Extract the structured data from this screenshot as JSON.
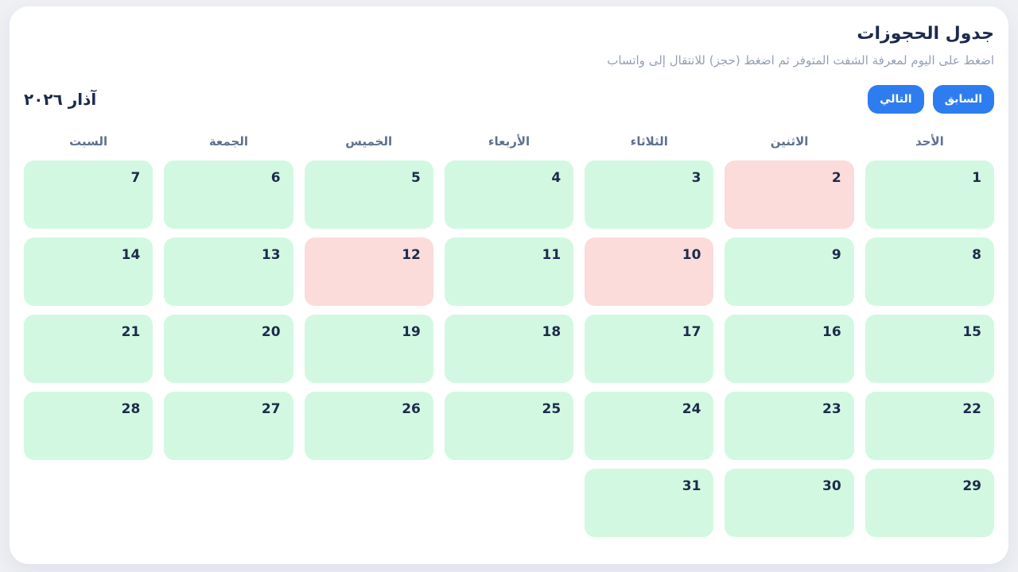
{
  "page": {
    "title": "جدول الحجوزات",
    "subtitle": "اضغط على اليوم لمعرفة الشفت المتوفر ثم اضغط (حجز) للانتقال إلى واتساب"
  },
  "toolbar": {
    "month_label": "آذار ٢٠٢٦",
    "prev_label": "السابق",
    "next_label": "التالي",
    "button_color": "#2e7df0"
  },
  "calendar": {
    "weekdays": [
      "الأحد",
      "الاثنين",
      "الثلاثاء",
      "الأربعاء",
      "الخميس",
      "الجمعة",
      "السبت"
    ],
    "start_weekday_index": 0,
    "colors": {
      "available": "#d2f8e2",
      "unavailable": "#fcdbdb"
    },
    "days": [
      {
        "day": "1",
        "status": "available"
      },
      {
        "day": "2",
        "status": "unavailable"
      },
      {
        "day": "3",
        "status": "available"
      },
      {
        "day": "4",
        "status": "available"
      },
      {
        "day": "5",
        "status": "available"
      },
      {
        "day": "6",
        "status": "available"
      },
      {
        "day": "7",
        "status": "available"
      },
      {
        "day": "8",
        "status": "available"
      },
      {
        "day": "9",
        "status": "available"
      },
      {
        "day": "10",
        "status": "unavailable"
      },
      {
        "day": "11",
        "status": "available"
      },
      {
        "day": "12",
        "status": "unavailable"
      },
      {
        "day": "13",
        "status": "available"
      },
      {
        "day": "14",
        "status": "available"
      },
      {
        "day": "15",
        "status": "available"
      },
      {
        "day": "16",
        "status": "available"
      },
      {
        "day": "17",
        "status": "available"
      },
      {
        "day": "18",
        "status": "available"
      },
      {
        "day": "19",
        "status": "available"
      },
      {
        "day": "20",
        "status": "available"
      },
      {
        "day": "21",
        "status": "available"
      },
      {
        "day": "22",
        "status": "available"
      },
      {
        "day": "23",
        "status": "available"
      },
      {
        "day": "24",
        "status": "available"
      },
      {
        "day": "25",
        "status": "available"
      },
      {
        "day": "26",
        "status": "available"
      },
      {
        "day": "27",
        "status": "available"
      },
      {
        "day": "28",
        "status": "available"
      },
      {
        "day": "29",
        "status": "available"
      },
      {
        "day": "30",
        "status": "available"
      },
      {
        "day": "31",
        "status": "available"
      }
    ]
  }
}
